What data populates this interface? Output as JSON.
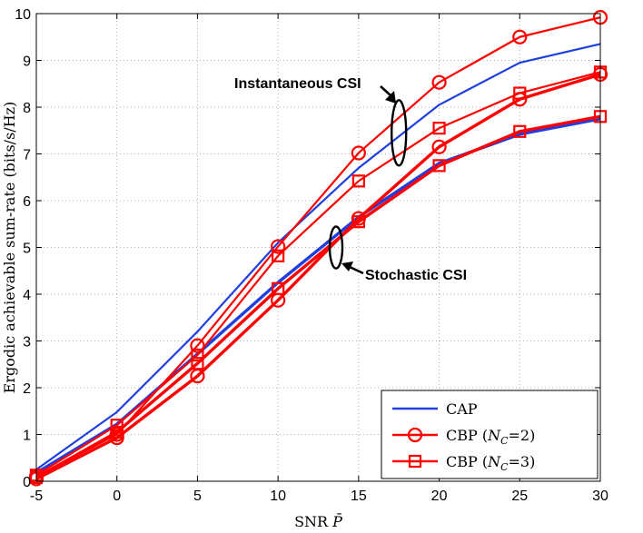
{
  "chart_data": {
    "type": "line",
    "title": "",
    "xlabel": "SNR",
    "xlabel_symbol": "P̄",
    "ylabel": "Ergodic achievable sum-rate (bits/s/Hz)",
    "xlim": [
      -5,
      30
    ],
    "ylim": [
      0,
      10
    ],
    "x_ticks": [
      "-5",
      "0",
      "5",
      "10",
      "15",
      "20",
      "25",
      "30"
    ],
    "y_ticks": [
      "0",
      "1",
      "2",
      "3",
      "4",
      "5",
      "6",
      "7",
      "8",
      "9",
      "10"
    ],
    "grid": true,
    "legend_position": "bottom-right",
    "x": [
      -5,
      0,
      5,
      10,
      15,
      20,
      25,
      30
    ],
    "series": [
      {
        "name": "CAP",
        "group": "Instantaneous CSI",
        "color": "#1f3fe0",
        "marker": "none",
        "width": 2.2,
        "values": [
          0.25,
          1.48,
          3.2,
          5.1,
          6.7,
          8.05,
          8.95,
          9.35
        ]
      },
      {
        "name": "CBP (NC=2)",
        "group": "Instantaneous CSI",
        "color": "#ff0000",
        "marker": "circle",
        "width": 2.2,
        "values": [
          0.1,
          1.0,
          2.9,
          5.02,
          7.02,
          8.53,
          9.5,
          9.92
        ]
      },
      {
        "name": "CBP (NC=3)",
        "group": "Instantaneous CSI",
        "color": "#ff0000",
        "marker": "square",
        "width": 2.2,
        "values": [
          0.13,
          1.2,
          2.7,
          4.82,
          6.42,
          7.55,
          8.3,
          8.75
        ]
      },
      {
        "name": "CAP",
        "group": "Stochastic CSI",
        "color": "#1f3fe0",
        "marker": "none",
        "width": 3.4,
        "values": [
          0.18,
          1.22,
          2.72,
          4.25,
          5.65,
          6.8,
          7.42,
          7.75
        ]
      },
      {
        "name": "CBP (NC=2)",
        "group": "Stochastic CSI",
        "color": "#ff0000",
        "marker": "circle",
        "width": 3.4,
        "values": [
          0.05,
          0.93,
          2.25,
          3.87,
          5.62,
          7.15,
          8.17,
          8.7
        ]
      },
      {
        "name": "CBP (NC=3)",
        "group": "Stochastic CSI",
        "color": "#ff0000",
        "marker": "square",
        "width": 3.4,
        "values": [
          0.08,
          1.05,
          2.52,
          4.12,
          5.55,
          6.75,
          7.48,
          7.8
        ]
      }
    ],
    "legend": [
      {
        "label": "CAP",
        "symbol": "",
        "color": "#1f3fe0",
        "marker": "none"
      },
      {
        "label": "CBP (",
        "symbol": "NC=2",
        "color": "#ff0000",
        "marker": "circle"
      },
      {
        "label": "CBP (",
        "symbol": "NC=3",
        "color": "#ff0000",
        "marker": "square"
      }
    ],
    "annotations": [
      {
        "text": "Instantaneous CSI",
        "ellipse_at": [
          17.5,
          7.45
        ],
        "points_to": "upper group"
      },
      {
        "text": "Stochastic CSI",
        "ellipse_at": [
          13.6,
          5.0
        ],
        "points_to": "lower group"
      }
    ]
  }
}
